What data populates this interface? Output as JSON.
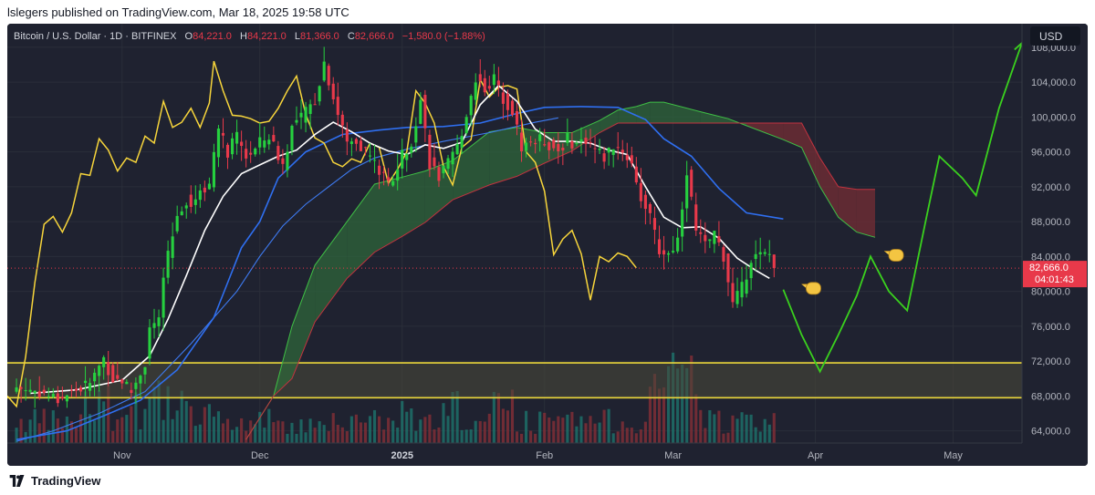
{
  "published": "lslegers published on TradingView.com, Mar 18, 2025 19:58 UTC",
  "brand": "TradingView",
  "colors": {
    "bg": "#1f2230",
    "up": "#26d03f",
    "down": "#e8394a",
    "sma": "#ffffff",
    "kijun": "#2f6ff0",
    "senkou": "#3e7bf2",
    "lagging": "#f7d53b",
    "cloud_bull": "#2f6a3a",
    "cloud_bear": "#7a2e35",
    "forecast": "#3ad11e",
    "level": "#ecd73b",
    "last_price_bg": "#e8394a",
    "usd_badge": "#131722"
  },
  "chart_data": {
    "type": "candlestick",
    "symbol": "Bitcoin / U.S. Dollar · 1D · BITFINEX",
    "ohlc": {
      "o_label": "O",
      "o": "84,221.0",
      "h_label": "H",
      "h": "84,221.0",
      "l_label": "L",
      "l": "81,366.0",
      "c_label": "C",
      "c": "82,666.0",
      "change": "−1,580.0 (−1.88%)"
    },
    "currency": "USD",
    "ylim": [
      62600,
      110700
    ],
    "y_ticks": [
      "108,000.0",
      "104,000.0",
      "100,000.0",
      "96,000.0",
      "92,000.0",
      "88,000.0",
      "84,000.0",
      "80,000.0",
      "76,000.0",
      "72,000.0",
      "68,000.0",
      "64,000.0"
    ],
    "x_ticks": [
      {
        "label": "Nov",
        "day": 0
      },
      {
        "label": "Dec",
        "day": 30
      },
      {
        "label": "2025",
        "day": 61,
        "bold": true
      },
      {
        "label": "Feb",
        "day": 92
      },
      {
        "label": "Mar",
        "day": 120
      },
      {
        "label": "Apr",
        "day": 151
      },
      {
        "label": "May",
        "day": 181
      }
    ],
    "day_domain": [
      -25,
      196
    ],
    "last_price": "82,666.0",
    "countdown": "04:01:43",
    "last_price_value": 82666,
    "support_levels": [
      71800,
      67800
    ],
    "close_anchors": [
      [
        -23,
        69000
      ],
      [
        -18,
        68500
      ],
      [
        -14,
        67600
      ],
      [
        -10,
        68700
      ],
      [
        -7,
        69400
      ],
      [
        -4,
        72300
      ],
      [
        -2,
        70000
      ],
      [
        0,
        69800
      ],
      [
        2,
        68500
      ],
      [
        5,
        71800
      ],
      [
        6,
        75800
      ],
      [
        8,
        76400
      ],
      [
        9,
        81500
      ],
      [
        12,
        88700
      ],
      [
        14,
        90600
      ],
      [
        15,
        90000
      ],
      [
        17,
        91600
      ],
      [
        19,
        92500
      ],
      [
        21,
        98300
      ],
      [
        23,
        96000
      ],
      [
        25,
        97600
      ],
      [
        27,
        95500
      ],
      [
        29,
        96200
      ],
      [
        30,
        97000
      ],
      [
        32,
        97800
      ],
      [
        35,
        94500
      ],
      [
        37,
        98800
      ],
      [
        40,
        100500
      ],
      [
        42,
        102000
      ],
      [
        44,
        106300
      ],
      [
        47,
        100300
      ],
      [
        49,
        97000
      ],
      [
        51,
        97400
      ],
      [
        54,
        95500
      ],
      [
        56,
        93800
      ],
      [
        58,
        92200
      ],
      [
        61,
        95500
      ],
      [
        63,
        97400
      ],
      [
        65,
        102000
      ],
      [
        67,
        94800
      ],
      [
        69,
        93000
      ],
      [
        71,
        94500
      ],
      [
        73,
        96500
      ],
      [
        75,
        100400
      ],
      [
        77,
        104500
      ],
      [
        79,
        103400
      ],
      [
        81,
        104300
      ],
      [
        83,
        102300
      ],
      [
        85,
        100700
      ],
      [
        87,
        96600
      ],
      [
        90,
        97400
      ],
      [
        92,
        97200
      ],
      [
        95,
        96200
      ],
      [
        97,
        97400
      ],
      [
        99,
        96900
      ],
      [
        101,
        97500
      ],
      [
        103,
        96300
      ],
      [
        105,
        95400
      ],
      [
        107,
        96800
      ],
      [
        109,
        96200
      ],
      [
        111,
        94600
      ],
      [
        113,
        90800
      ],
      [
        115,
        88200
      ],
      [
        117,
        84700
      ],
      [
        119,
        84300
      ],
      [
        121,
        86000
      ],
      [
        123,
        94000
      ],
      [
        125,
        86800
      ],
      [
        127,
        85200
      ],
      [
        129,
        86700
      ],
      [
        131,
        84100
      ],
      [
        133,
        78500
      ],
      [
        135,
        80300
      ],
      [
        137,
        83900
      ],
      [
        139,
        84000
      ],
      [
        141,
        84221
      ],
      [
        142,
        82666
      ]
    ],
    "indicators": {
      "sma": [
        [
          -20,
          68300
        ],
        [
          -10,
          68700
        ],
        [
          0,
          69800
        ],
        [
          6,
          72600
        ],
        [
          10,
          76800
        ],
        [
          14,
          81800
        ],
        [
          18,
          87000
        ],
        [
          22,
          90900
        ],
        [
          26,
          93500
        ],
        [
          30,
          94500
        ],
        [
          34,
          95500
        ],
        [
          38,
          96200
        ],
        [
          42,
          98000
        ],
        [
          46,
          99400
        ],
        [
          50,
          98300
        ],
        [
          54,
          97000
        ],
        [
          58,
          96100
        ],
        [
          62,
          95700
        ],
        [
          66,
          96800
        ],
        [
          70,
          96400
        ],
        [
          74,
          97100
        ],
        [
          78,
          101400
        ],
        [
          82,
          103600
        ],
        [
          86,
          101800
        ],
        [
          90,
          98600
        ],
        [
          94,
          97200
        ],
        [
          98,
          97200
        ],
        [
          102,
          97000
        ],
        [
          106,
          96200
        ],
        [
          110,
          95700
        ],
        [
          114,
          92000
        ],
        [
          118,
          88500
        ],
        [
          122,
          87300
        ],
        [
          126,
          87400
        ],
        [
          130,
          86100
        ],
        [
          134,
          83800
        ],
        [
          138,
          82400
        ],
        [
          141,
          81500
        ]
      ],
      "kijun": [
        [
          -23,
          63000
        ],
        [
          -12,
          64000
        ],
        [
          -5,
          65500
        ],
        [
          4,
          67500
        ],
        [
          12,
          71000
        ],
        [
          20,
          77000
        ],
        [
          26,
          85000
        ],
        [
          30,
          88000
        ],
        [
          34,
          93000
        ],
        [
          40,
          96000
        ],
        [
          48,
          98000
        ],
        [
          56,
          98500
        ],
        [
          62,
          98800
        ],
        [
          70,
          98900
        ],
        [
          78,
          99300
        ],
        [
          86,
          100400
        ],
        [
          92,
          101100
        ],
        [
          100,
          101200
        ],
        [
          108,
          101100
        ],
        [
          114,
          99700
        ],
        [
          118,
          97500
        ],
        [
          124,
          95500
        ],
        [
          130,
          91800
        ],
        [
          136,
          89000
        ],
        [
          144,
          88300
        ]
      ],
      "senkou_line": [
        [
          -23,
          62800
        ],
        [
          -15,
          64000
        ],
        [
          -5,
          66000
        ],
        [
          5,
          68500
        ],
        [
          15,
          74000
        ],
        [
          25,
          80000
        ],
        [
          30,
          84000
        ],
        [
          35,
          87500
        ],
        [
          40,
          90000
        ],
        [
          45,
          92000
        ],
        [
          50,
          94000
        ],
        [
          55,
          95300
        ],
        [
          62,
          96300
        ],
        [
          70,
          97200
        ],
        [
          80,
          98200
        ],
        [
          90,
          99400
        ],
        [
          95,
          99900
        ]
      ],
      "span_a": [
        [
          27,
          63000
        ],
        [
          33,
          68000
        ],
        [
          37,
          76000
        ],
        [
          42,
          83000
        ],
        [
          49,
          88000
        ],
        [
          55,
          92300
        ],
        [
          61,
          93100
        ],
        [
          66,
          93800
        ],
        [
          72,
          95000
        ],
        [
          80,
          98300
        ],
        [
          86,
          98800
        ],
        [
          92,
          98200
        ],
        [
          98,
          98200
        ],
        [
          104,
          99600
        ],
        [
          108,
          100800
        ],
        [
          112,
          101200
        ],
        [
          115,
          101700
        ],
        [
          118,
          101700
        ],
        [
          126,
          100600
        ],
        [
          132,
          99800
        ],
        [
          136,
          99000
        ],
        [
          144,
          97400
        ],
        [
          148,
          96500
        ],
        [
          152,
          92000
        ],
        [
          156,
          88500
        ],
        [
          160,
          86800
        ],
        [
          164,
          86200
        ]
      ],
      "span_b": [
        [
          27,
          63000
        ],
        [
          33,
          68000
        ],
        [
          37,
          70000
        ],
        [
          42,
          76500
        ],
        [
          49,
          81500
        ],
        [
          55,
          84500
        ],
        [
          61,
          86300
        ],
        [
          66,
          87900
        ],
        [
          72,
          90500
        ],
        [
          80,
          92200
        ],
        [
          86,
          93200
        ],
        [
          92,
          94700
        ],
        [
          98,
          96100
        ],
        [
          104,
          98200
        ],
        [
          108,
          99300
        ],
        [
          112,
          99300
        ],
        [
          115,
          99300
        ],
        [
          118,
          99300
        ],
        [
          126,
          99300
        ],
        [
          132,
          99300
        ],
        [
          136,
          99300
        ],
        [
          144,
          99300
        ],
        [
          148,
          99300
        ],
        [
          152,
          95300
        ],
        [
          156,
          92000
        ],
        [
          160,
          91700
        ],
        [
          164,
          91700
        ]
      ],
      "lagging": [
        [
          -25,
          68000
        ],
        [
          -23,
          66800
        ],
        [
          -21,
          72500
        ],
        [
          -19,
          81000
        ],
        [
          -17,
          87700
        ],
        [
          -15,
          88600
        ],
        [
          -13,
          86800
        ],
        [
          -11,
          89000
        ],
        [
          -9,
          93500
        ],
        [
          -7,
          93300
        ],
        [
          -5,
          97500
        ],
        [
          -3,
          96200
        ],
        [
          -1,
          93800
        ],
        [
          1,
          95300
        ],
        [
          3,
          94800
        ],
        [
          5,
          97800
        ],
        [
          7,
          97000
        ],
        [
          9,
          101800
        ],
        [
          11,
          98800
        ],
        [
          13,
          99400
        ],
        [
          15,
          101000
        ],
        [
          17,
          98800
        ],
        [
          19,
          101600
        ],
        [
          20,
          106400
        ],
        [
          22,
          103000
        ],
        [
          24,
          100200
        ],
        [
          26,
          100100
        ],
        [
          28,
          99800
        ],
        [
          30,
          99300
        ],
        [
          32,
          99500
        ],
        [
          34,
          101000
        ],
        [
          36,
          103000
        ],
        [
          38,
          104700
        ],
        [
          40,
          100300
        ],
        [
          42,
          97600
        ],
        [
          44,
          97000
        ],
        [
          46,
          94800
        ],
        [
          48,
          94300
        ],
        [
          50,
          95200
        ],
        [
          52,
          94800
        ],
        [
          54,
          97000
        ],
        [
          56,
          96500
        ],
        [
          58,
          92400
        ],
        [
          60,
          94000
        ],
        [
          62,
          96000
        ],
        [
          64,
          103000
        ],
        [
          66,
          101600
        ],
        [
          68,
          99300
        ],
        [
          70,
          94300
        ],
        [
          72,
          92200
        ],
        [
          74,
          96500
        ],
        [
          76,
          97400
        ],
        [
          78,
          104300
        ],
        [
          80,
          102300
        ],
        [
          82,
          103400
        ],
        [
          84,
          103600
        ],
        [
          86,
          103200
        ],
        [
          88,
          96000
        ],
        [
          90,
          94800
        ],
        [
          92,
          91500
        ],
        [
          94,
          84200
        ],
        [
          96,
          86000
        ],
        [
          98,
          87000
        ],
        [
          100,
          84300
        ],
        [
          102,
          79000
        ],
        [
          104,
          84000
        ],
        [
          106,
          83400
        ],
        [
          108,
          84400
        ],
        [
          110,
          84000
        ],
        [
          112,
          82700
        ]
      ],
      "forecast": [
        [
          144,
          80200
        ],
        [
          148,
          75000
        ],
        [
          152,
          70800
        ],
        [
          156,
          75000
        ],
        [
          160,
          79500
        ],
        [
          163,
          84000
        ],
        [
          167,
          80000
        ],
        [
          171,
          77800
        ],
        [
          175,
          88000
        ],
        [
          178,
          95500
        ],
        [
          183,
          93000
        ],
        [
          186,
          91000
        ],
        [
          191,
          101000
        ],
        [
          196,
          108500
        ]
      ]
    },
    "hands": [
      {
        "day": 148,
        "price": 80500
      },
      [
        {
          "day": 166,
          "price": 84300
        }
      ]
    ]
  }
}
